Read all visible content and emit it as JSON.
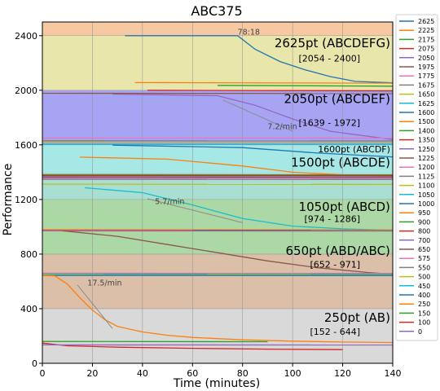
{
  "chart_data": {
    "type": "line",
    "title": "ABC375",
    "xlabel": "Time (minutes)",
    "ylabel": "Performance",
    "xlim": [
      0,
      140
    ],
    "ylim": [
      0,
      2500
    ],
    "xticks": [
      0,
      20,
      40,
      60,
      80,
      100,
      120,
      140
    ],
    "yticks": [
      0,
      400,
      800,
      1200,
      1600,
      2000,
      2400
    ],
    "grid": true,
    "bands": [
      {
        "y0": 0,
        "y1": 400,
        "color": "#d9d9d9"
      },
      {
        "y0": 400,
        "y1": 800,
        "color": "#dbbfa8"
      },
      {
        "y0": 800,
        "y1": 1200,
        "color": "#abd8a4"
      },
      {
        "y0": 1200,
        "y1": 1400,
        "color": "#a9ded2"
      },
      {
        "y0": 1400,
        "y1": 1600,
        "color": "#a6e8e6"
      },
      {
        "y0": 1600,
        "y1": 2000,
        "color": "#a7a5f3"
      },
      {
        "y0": 2000,
        "y1": 2400,
        "color": "#e8e6aa"
      },
      {
        "y0": 2400,
        "y1": 2500,
        "color": "#f6c9a2"
      }
    ],
    "annotations": [
      {
        "text": "2625pt (ABCDEFG)",
        "x": 139,
        "y": 2315,
        "size": 15
      },
      {
        "text": "[2054 - 2400]",
        "x": 127,
        "y": 2210,
        "size": 11
      },
      {
        "text": "2050pt (ABCDEF)",
        "x": 139,
        "y": 1905,
        "size": 15
      },
      {
        "text": "[1639 - 1972]",
        "x": 127,
        "y": 1740,
        "size": 11
      },
      {
        "text": "1600pt (ABCDF)",
        "x": 139,
        "y": 1545,
        "size": 11
      },
      {
        "text": "1500pt (ABCDE)",
        "x": 139,
        "y": 1440,
        "size": 15
      },
      {
        "text": "1050pt (ABCD)",
        "x": 139,
        "y": 1115,
        "size": 15
      },
      {
        "text": "[974 - 1286]",
        "x": 127,
        "y": 1035,
        "size": 11
      },
      {
        "text": "650pt (ABD/ABC)",
        "x": 139,
        "y": 795,
        "size": 15
      },
      {
        "text": "[652 - 971]",
        "x": 127,
        "y": 700,
        "size": 11
      },
      {
        "text": "250pt (AB)",
        "x": 139,
        "y": 305,
        "size": 15
      },
      {
        "text": "[152 - 644]",
        "x": 127,
        "y": 210,
        "size": 11
      }
    ],
    "slope_labels": [
      {
        "text": "78:18",
        "x": 78,
        "y": 2408
      },
      {
        "text": "7.2/min",
        "x": 90,
        "y": 1715
      },
      {
        "text": "5.7/min",
        "x": 45,
        "y": 1165
      },
      {
        "text": "17.5/min",
        "x": 18,
        "y": 570
      }
    ],
    "trend_lines": [
      {
        "x": [
          72,
          100
        ],
        "y": [
          1930,
          1700
        ]
      },
      {
        "x": [
          42,
          80
        ],
        "y": [
          1205,
          1030
        ]
      },
      {
        "x": [
          14,
          28
        ],
        "y": [
          575,
          255
        ]
      }
    ],
    "legend_position": "right",
    "series": [
      {
        "name": "2625",
        "color": "#1f77b4",
        "x": [
          33,
          78,
          85,
          95,
          105,
          115,
          125,
          140
        ],
        "y": [
          2400,
          2400,
          2300,
          2210,
          2150,
          2100,
          2065,
          2054
        ]
      },
      {
        "name": "2225",
        "color": "#ff7f0e",
        "x": [
          37,
          140
        ],
        "y": [
          2056,
          2052
        ]
      },
      {
        "name": "2175",
        "color": "#2ca02c",
        "x": [
          70,
          140
        ],
        "y": [
          2036,
          2030
        ]
      },
      {
        "name": "2075",
        "color": "#d62728",
        "x": [
          42,
          140
        ],
        "y": [
          2000,
          1995
        ]
      },
      {
        "name": "2050",
        "color": "#9467bd",
        "x": [
          28,
          70,
          85,
          100,
          115,
          140
        ],
        "y": [
          1972,
          1960,
          1890,
          1790,
          1700,
          1639
        ]
      },
      {
        "name": "1975",
        "color": "#8c564b",
        "x": [
          0,
          140
        ],
        "y": [
          1978,
          1976
        ]
      },
      {
        "name": "1775",
        "color": "#e377c2",
        "x": [
          0,
          140
        ],
        "y": [
          1650,
          1649
        ]
      },
      {
        "name": "1675",
        "color": "#7f7f7f",
        "x": [
          0,
          140
        ],
        "y": [
          1630,
          1629
        ]
      },
      {
        "name": "1650",
        "color": "#bcbd22",
        "x": [
          0,
          140
        ],
        "y": [
          1622,
          1621
        ]
      },
      {
        "name": "1625",
        "color": "#17becf",
        "x": [
          0,
          140
        ],
        "y": [
          1605,
          1604
        ]
      },
      {
        "name": "1600",
        "color": "#1f77b4",
        "x": [
          28,
          80,
          110,
          140
        ],
        "y": [
          1598,
          1580,
          1540,
          1512
        ]
      },
      {
        "name": "1500",
        "color": "#ff7f0e",
        "x": [
          15,
          50,
          80,
          100,
          120,
          140
        ],
        "y": [
          1510,
          1495,
          1445,
          1400,
          1380,
          1372
        ]
      },
      {
        "name": "1400",
        "color": "#2ca02c",
        "x": [
          0,
          140
        ],
        "y": [
          1382,
          1380
        ]
      },
      {
        "name": "1350",
        "color": "#d62728",
        "x": [
          0,
          140
        ],
        "y": [
          1375,
          1374
        ]
      },
      {
        "name": "1250",
        "color": "#9467bd",
        "x": [
          0,
          140
        ],
        "y": [
          1368,
          1366
        ]
      },
      {
        "name": "1225",
        "color": "#8c564b",
        "x": [
          0,
          140
        ],
        "y": [
          1362,
          1360
        ]
      },
      {
        "name": "1200",
        "color": "#e377c2",
        "x": [
          0,
          140
        ],
        "y": [
          1355,
          1354
        ]
      },
      {
        "name": "1125",
        "color": "#7f7f7f",
        "x": [
          0,
          140
        ],
        "y": [
          1348,
          1346
        ]
      },
      {
        "name": "1100",
        "color": "#bcbd22",
        "x": [
          0,
          140
        ],
        "y": [
          1312,
          1310
        ]
      },
      {
        "name": "1050",
        "color": "#17becf",
        "x": [
          17,
          40,
          60,
          80,
          100,
          120,
          140
        ],
        "y": [
          1286,
          1250,
          1160,
          1060,
          1005,
          985,
          974
        ]
      },
      {
        "name": "1000",
        "color": "#1f77b4",
        "x": [
          0,
          140
        ],
        "y": [
          976,
          975
        ]
      },
      {
        "name": "950",
        "color": "#ff7f0e",
        "x": [
          0,
          140
        ],
        "y": [
          979,
          977
        ]
      },
      {
        "name": "900",
        "color": "#2ca02c",
        "x": [
          60,
          140
        ],
        "y": [
          975,
          974
        ]
      },
      {
        "name": "800",
        "color": "#d62728",
        "x": [
          0,
          140
        ],
        "y": [
          972,
          971
        ]
      },
      {
        "name": "700",
        "color": "#9467bd",
        "x": [
          0,
          140
        ],
        "y": [
          970,
          969
        ]
      },
      {
        "name": "650",
        "color": "#8c564b",
        "x": [
          8,
          30,
          50,
          70,
          90,
          110,
          130,
          140
        ],
        "y": [
          971,
          930,
          870,
          810,
          750,
          700,
          665,
          652
        ]
      },
      {
        "name": "575",
        "color": "#e377c2",
        "x": [
          0,
          140
        ],
        "y": [
          660,
          659
        ]
      },
      {
        "name": "550",
        "color": "#7f7f7f",
        "x": [
          0,
          140
        ],
        "y": [
          656,
          655
        ]
      },
      {
        "name": "500",
        "color": "#bcbd22",
        "x": [
          0,
          140
        ],
        "y": [
          652,
          651
        ]
      },
      {
        "name": "450",
        "color": "#17becf",
        "x": [
          0,
          140
        ],
        "y": [
          648,
          647
        ]
      },
      {
        "name": "400",
        "color": "#1f77b4",
        "x": [
          0,
          140
        ],
        "y": [
          644,
          643
        ]
      },
      {
        "name": "250",
        "color": "#ff7f0e",
        "x": [
          0,
          5,
          10,
          15,
          20,
          25,
          30,
          40,
          50,
          60,
          80,
          100,
          120,
          140
        ],
        "y": [
          644,
          640,
          580,
          480,
          390,
          320,
          270,
          230,
          205,
          190,
          172,
          162,
          156,
          152
        ]
      },
      {
        "name": "150",
        "color": "#2ca02c",
        "x": [
          0,
          90
        ],
        "y": [
          160,
          158
        ]
      },
      {
        "name": "100",
        "color": "#d62728",
        "x": [
          0,
          10,
          30,
          60,
          90,
          120
        ],
        "y": [
          148,
          128,
          118,
          110,
          104,
          100
        ]
      },
      {
        "name": "0",
        "color": "#9467bd",
        "x": [
          0,
          140
        ],
        "y": [
          135,
          134
        ]
      }
    ]
  }
}
